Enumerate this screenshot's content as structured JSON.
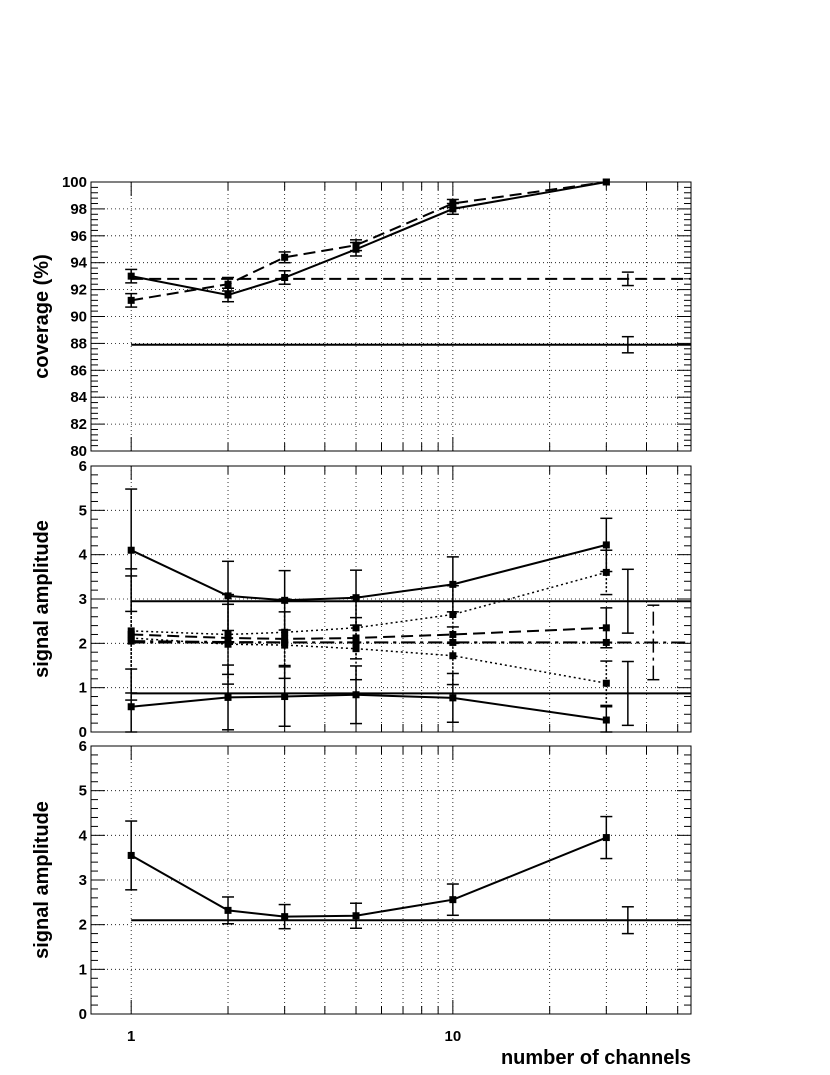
{
  "chart_data": [
    {
      "type": "line",
      "xscale": "log",
      "xlim": [
        0.75,
        55
      ],
      "ylim": [
        80,
        100
      ],
      "ylabel": "coverage (%)",
      "xlabel": "",
      "grid": true,
      "y_ticks": [
        80,
        82,
        84,
        86,
        88,
        90,
        92,
        94,
        96,
        98,
        100
      ],
      "series": [
        {
          "style": "solid",
          "x": [
            1,
            2,
            3,
            5,
            10,
            30
          ],
          "y": [
            93.0,
            91.6,
            92.9,
            95.0,
            98.0,
            100.0
          ],
          "yerr": [
            0.5,
            0.5,
            0.5,
            0.5,
            0.4,
            0.0
          ]
        },
        {
          "style": "dashed",
          "x": [
            1,
            2,
            3,
            5,
            10,
            30
          ],
          "y": [
            91.2,
            92.4,
            94.4,
            95.3,
            98.4,
            100.0
          ],
          "yerr": [
            0.5,
            0.5,
            0.4,
            0.4,
            0.3,
            0.0
          ]
        }
      ],
      "hlines": [
        {
          "style": "dashed",
          "y": 92.8,
          "err_x": 35,
          "yerr": 0.5
        },
        {
          "style": "solid",
          "y": 87.9,
          "err_x": 35,
          "yerr": 0.6
        }
      ]
    },
    {
      "type": "line",
      "xscale": "log",
      "xlim": [
        0.75,
        55
      ],
      "ylim": [
        0,
        6
      ],
      "ylabel": "signal amplitude",
      "xlabel": "",
      "grid": true,
      "y_ticks": [
        0,
        1,
        2,
        3,
        4,
        5,
        6
      ],
      "series": [
        {
          "style": "solid",
          "x": [
            1,
            2,
            3,
            5,
            10,
            30
          ],
          "y": [
            4.1,
            3.07,
            2.97,
            3.03,
            3.33,
            4.22
          ],
          "yerr": [
            1.38,
            0.78,
            0.67,
            0.62,
            0.62,
            0.6
          ]
        },
        {
          "style": "solid",
          "x": [
            1,
            2,
            3,
            5,
            10,
            30
          ],
          "y": [
            0.57,
            0.78,
            0.8,
            0.84,
            0.77,
            0.27
          ],
          "yerr": [
            0.85,
            0.73,
            0.67,
            0.65,
            0.55,
            0.3
          ]
        },
        {
          "style": "dashed",
          "x": [
            1,
            2,
            3,
            5,
            10,
            30
          ],
          "y": [
            2.2,
            2.12,
            2.1,
            2.12,
            2.2,
            2.35
          ],
          "yerr": [
            0.0,
            0.0,
            0.0,
            0.0,
            0.0,
            0.45
          ]
        },
        {
          "style": "dashdot",
          "x": [
            1,
            2,
            3,
            5,
            10,
            30
          ],
          "y": [
            2.05,
            2.03,
            2.02,
            2.02,
            2.02,
            2.02
          ],
          "yerr": [
            0.0,
            0.0,
            0.0,
            0.0,
            0.0,
            0.0
          ]
        },
        {
          "style": "dotted",
          "x": [
            1,
            2,
            3,
            5,
            10,
            30
          ],
          "y": [
            2.28,
            2.2,
            2.25,
            2.35,
            2.65,
            3.6
          ],
          "yerr": [
            1.4,
            0.9,
            0.75,
            0.7,
            0.65,
            0.5
          ]
        },
        {
          "style": "dotted",
          "x": [
            1,
            2,
            3,
            5,
            10,
            30
          ],
          "y": [
            2.12,
            1.98,
            1.96,
            1.88,
            1.72,
            1.1
          ],
          "yerr": [
            1.4,
            0.9,
            0.75,
            0.7,
            0.65,
            0.5
          ]
        }
      ],
      "hlines": [
        {
          "style": "solid",
          "y": 2.95,
          "err_x": 35,
          "yerr": 0.72
        },
        {
          "style": "solid",
          "y": 0.87,
          "err_x": 35,
          "yerr": 0.72
        },
        {
          "style": "dashdot",
          "y": 2.02,
          "err_x": 42,
          "yerr": 0.84
        }
      ]
    },
    {
      "type": "line",
      "xscale": "log",
      "xlim": [
        0.75,
        55
      ],
      "ylim": [
        0,
        6
      ],
      "ylabel": "signal amplitude",
      "xlabel": "number of channels",
      "grid": true,
      "y_ticks": [
        0,
        1,
        2,
        3,
        4,
        5,
        6
      ],
      "x_ticks": [
        1,
        10
      ],
      "x_tick_labels": [
        "1",
        "10"
      ],
      "series": [
        {
          "style": "solid",
          "x": [
            1,
            2,
            3,
            5,
            10,
            30
          ],
          "y": [
            3.55,
            2.32,
            2.18,
            2.2,
            2.56,
            3.95
          ],
          "yerr": [
            0.77,
            0.3,
            0.27,
            0.28,
            0.35,
            0.47
          ]
        }
      ],
      "hlines": [
        {
          "style": "solid",
          "y": 2.1,
          "err_x": 35,
          "yerr": 0.3
        }
      ]
    }
  ]
}
